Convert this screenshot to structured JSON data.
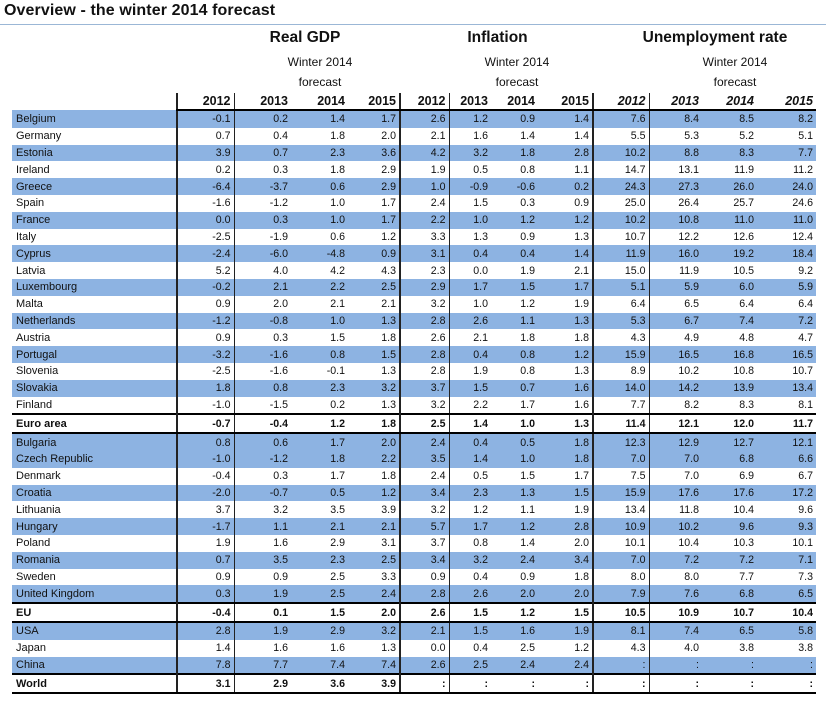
{
  "title": "Overview - the winter 2014 forecast",
  "groups": {
    "gdp": "Real GDP",
    "inflation": "Inflation",
    "unemployment": "Unemployment rate"
  },
  "subheading_line1": "Winter 2014",
  "subheading_line2": "forecast",
  "years": [
    "2012",
    "2013",
    "2014",
    "2015"
  ],
  "rows": [
    {
      "country": "Belgium",
      "v": [
        "-0.1",
        "0.2",
        "1.4",
        "1.7",
        "2.6",
        "1.2",
        "0.9",
        "1.4",
        "7.6",
        "8.4",
        "8.5",
        "8.2"
      ],
      "shade": true
    },
    {
      "country": "Germany",
      "v": [
        "0.7",
        "0.4",
        "1.8",
        "2.0",
        "2.1",
        "1.6",
        "1.4",
        "1.4",
        "5.5",
        "5.3",
        "5.2",
        "5.1"
      ],
      "shade": false
    },
    {
      "country": "Estonia",
      "v": [
        "3.9",
        "0.7",
        "2.3",
        "3.6",
        "4.2",
        "3.2",
        "1.8",
        "2.8",
        "10.2",
        "8.8",
        "8.3",
        "7.7"
      ],
      "shade": true
    },
    {
      "country": "Ireland",
      "v": [
        "0.2",
        "0.3",
        "1.8",
        "2.9",
        "1.9",
        "0.5",
        "0.8",
        "1.1",
        "14.7",
        "13.1",
        "11.9",
        "11.2"
      ],
      "shade": false
    },
    {
      "country": "Greece",
      "v": [
        "-6.4",
        "-3.7",
        "0.6",
        "2.9",
        "1.0",
        "-0.9",
        "-0.6",
        "0.2",
        "24.3",
        "27.3",
        "26.0",
        "24.0"
      ],
      "shade": true
    },
    {
      "country": "Spain",
      "v": [
        "-1.6",
        "-1.2",
        "1.0",
        "1.7",
        "2.4",
        "1.5",
        "0.3",
        "0.9",
        "25.0",
        "26.4",
        "25.7",
        "24.6"
      ],
      "shade": false
    },
    {
      "country": "France",
      "v": [
        "0.0",
        "0.3",
        "1.0",
        "1.7",
        "2.2",
        "1.0",
        "1.2",
        "1.2",
        "10.2",
        "10.8",
        "11.0",
        "11.0"
      ],
      "shade": true
    },
    {
      "country": "Italy",
      "v": [
        "-2.5",
        "-1.9",
        "0.6",
        "1.2",
        "3.3",
        "1.3",
        "0.9",
        "1.3",
        "10.7",
        "12.2",
        "12.6",
        "12.4"
      ],
      "shade": false
    },
    {
      "country": "Cyprus",
      "v": [
        "-2.4",
        "-6.0",
        "-4.8",
        "0.9",
        "3.1",
        "0.4",
        "0.4",
        "1.4",
        "11.9",
        "16.0",
        "19.2",
        "18.4"
      ],
      "shade": true
    },
    {
      "country": "Latvia",
      "v": [
        "5.2",
        "4.0",
        "4.2",
        "4.3",
        "2.3",
        "0.0",
        "1.9",
        "2.1",
        "15.0",
        "11.9",
        "10.5",
        "9.2"
      ],
      "shade": false
    },
    {
      "country": "Luxembourg",
      "v": [
        "-0.2",
        "2.1",
        "2.2",
        "2.5",
        "2.9",
        "1.7",
        "1.5",
        "1.7",
        "5.1",
        "5.9",
        "6.0",
        "5.9"
      ],
      "shade": true
    },
    {
      "country": "Malta",
      "v": [
        "0.9",
        "2.0",
        "2.1",
        "2.1",
        "3.2",
        "1.0",
        "1.2",
        "1.9",
        "6.4",
        "6.5",
        "6.4",
        "6.4"
      ],
      "shade": false
    },
    {
      "country": "Netherlands",
      "v": [
        "-1.2",
        "-0.8",
        "1.0",
        "1.3",
        "2.8",
        "2.6",
        "1.1",
        "1.3",
        "5.3",
        "6.7",
        "7.4",
        "7.2"
      ],
      "shade": true
    },
    {
      "country": "Austria",
      "v": [
        "0.9",
        "0.3",
        "1.5",
        "1.8",
        "2.6",
        "2.1",
        "1.8",
        "1.8",
        "4.3",
        "4.9",
        "4.8",
        "4.7"
      ],
      "shade": false
    },
    {
      "country": "Portugal",
      "v": [
        "-3.2",
        "-1.6",
        "0.8",
        "1.5",
        "2.8",
        "0.4",
        "0.8",
        "1.2",
        "15.9",
        "16.5",
        "16.8",
        "16.5"
      ],
      "shade": true
    },
    {
      "country": "Slovenia",
      "v": [
        "-2.5",
        "-1.6",
        "-0.1",
        "1.3",
        "2.8",
        "1.9",
        "0.8",
        "1.3",
        "8.9",
        "10.2",
        "10.8",
        "10.7"
      ],
      "shade": false
    },
    {
      "country": "Slovakia",
      "v": [
        "1.8",
        "0.8",
        "2.3",
        "3.2",
        "3.7",
        "1.5",
        "0.7",
        "1.6",
        "14.0",
        "14.2",
        "13.9",
        "13.4"
      ],
      "shade": true
    },
    {
      "country": "Finland",
      "v": [
        "-1.0",
        "-1.5",
        "0.2",
        "1.3",
        "3.2",
        "2.2",
        "1.7",
        "1.6",
        "7.7",
        "8.2",
        "8.3",
        "8.1"
      ],
      "shade": false
    },
    {
      "country": "Euro area",
      "v": [
        "-0.7",
        "-0.4",
        "1.2",
        "1.8",
        "2.5",
        "1.4",
        "1.0",
        "1.3",
        "11.4",
        "12.1",
        "12.0",
        "11.7"
      ],
      "bold": true
    },
    {
      "country": "Bulgaria",
      "v": [
        "0.8",
        "0.6",
        "1.7",
        "2.0",
        "2.4",
        "0.4",
        "0.5",
        "1.8",
        "12.3",
        "12.9",
        "12.7",
        "12.1"
      ],
      "shade": true
    },
    {
      "country": "Czech Republic",
      "v": [
        "-1.0",
        "-1.2",
        "1.8",
        "2.2",
        "3.5",
        "1.4",
        "1.0",
        "1.8",
        "7.0",
        "7.0",
        "6.8",
        "6.6"
      ],
      "shade": true
    },
    {
      "country": "Denmark",
      "v": [
        "-0.4",
        "0.3",
        "1.7",
        "1.8",
        "2.4",
        "0.5",
        "1.5",
        "1.7",
        "7.5",
        "7.0",
        "6.9",
        "6.7"
      ],
      "shade": false
    },
    {
      "country": "Croatia",
      "v": [
        "-2.0",
        "-0.7",
        "0.5",
        "1.2",
        "3.4",
        "2.3",
        "1.3",
        "1.5",
        "15.9",
        "17.6",
        "17.6",
        "17.2"
      ],
      "shade": true
    },
    {
      "country": "Lithuania",
      "v": [
        "3.7",
        "3.2",
        "3.5",
        "3.9",
        "3.2",
        "1.2",
        "1.1",
        "1.9",
        "13.4",
        "11.8",
        "10.4",
        "9.6"
      ],
      "shade": false
    },
    {
      "country": "Hungary",
      "v": [
        "-1.7",
        "1.1",
        "2.1",
        "2.1",
        "5.7",
        "1.7",
        "1.2",
        "2.8",
        "10.9",
        "10.2",
        "9.6",
        "9.3"
      ],
      "shade": true
    },
    {
      "country": "Poland",
      "v": [
        "1.9",
        "1.6",
        "2.9",
        "3.1",
        "3.7",
        "0.8",
        "1.4",
        "2.0",
        "10.1",
        "10.4",
        "10.3",
        "10.1"
      ],
      "shade": false
    },
    {
      "country": "Romania",
      "v": [
        "0.7",
        "3.5",
        "2.3",
        "2.5",
        "3.4",
        "3.2",
        "2.4",
        "3.4",
        "7.0",
        "7.2",
        "7.2",
        "7.1"
      ],
      "shade": true
    },
    {
      "country": "Sweden",
      "v": [
        "0.9",
        "0.9",
        "2.5",
        "3.3",
        "0.9",
        "0.4",
        "0.9",
        "1.8",
        "8.0",
        "8.0",
        "7.7",
        "7.3"
      ],
      "shade": false
    },
    {
      "country": "United Kingdom",
      "v": [
        "0.3",
        "1.9",
        "2.5",
        "2.4",
        "2.8",
        "2.6",
        "2.0",
        "2.0",
        "7.9",
        "7.6",
        "6.8",
        "6.5"
      ],
      "shade": true
    },
    {
      "country": "EU",
      "v": [
        "-0.4",
        "0.1",
        "1.5",
        "2.0",
        "2.6",
        "1.5",
        "1.2",
        "1.5",
        "10.5",
        "10.9",
        "10.7",
        "10.4"
      ],
      "bold": true
    },
    {
      "country": "USA",
      "v": [
        "2.8",
        "1.9",
        "2.9",
        "3.2",
        "2.1",
        "1.5",
        "1.6",
        "1.9",
        "8.1",
        "7.4",
        "6.5",
        "5.8"
      ],
      "shade": true
    },
    {
      "country": "Japan",
      "v": [
        "1.4",
        "1.6",
        "1.6",
        "1.3",
        "0.0",
        "0.4",
        "2.5",
        "1.2",
        "4.3",
        "4.0",
        "3.8",
        "3.8"
      ],
      "shade": false
    },
    {
      "country": "China",
      "v": [
        "7.8",
        "7.7",
        "7.4",
        "7.4",
        "2.6",
        "2.5",
        "2.4",
        "2.4",
        ":",
        ":",
        ":",
        ":"
      ],
      "shade": true
    },
    {
      "country": "World",
      "v": [
        "3.1",
        "2.9",
        "3.6",
        "3.9",
        ":",
        ":",
        ":",
        ":",
        ":",
        ":",
        ":",
        ":"
      ],
      "bold": true
    }
  ]
}
